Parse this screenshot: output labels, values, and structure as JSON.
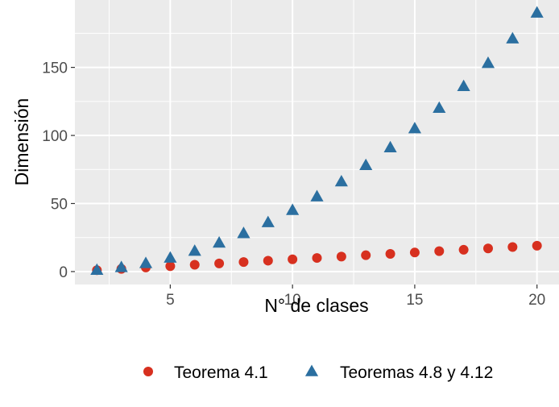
{
  "chart_data": {
    "type": "scatter",
    "xlabel": "N° de clases",
    "ylabel": "Dimensión",
    "xlim": [
      1.1,
      20.9
    ],
    "ylim": [
      -9.5,
      199.5
    ],
    "xticks": [
      5,
      10,
      15,
      20
    ],
    "yticks": [
      0,
      50,
      100,
      150
    ],
    "grid": true,
    "legend_position": "bottom",
    "background": "#ebebeb",
    "series": [
      {
        "name": "Teorema 4.1",
        "marker": "circle",
        "color": "#d7301f",
        "x": [
          2,
          3,
          4,
          5,
          6,
          7,
          8,
          9,
          10,
          11,
          12,
          13,
          14,
          15,
          16,
          17,
          18,
          19,
          20
        ],
        "y": [
          1,
          2,
          3,
          4,
          5,
          6,
          7,
          8,
          9,
          10,
          11,
          12,
          13,
          14,
          15,
          16,
          17,
          18,
          19
        ]
      },
      {
        "name": "Teoremas 4.8 y 4.12",
        "marker": "triangle",
        "color": "#2b6fa0",
        "x": [
          2,
          3,
          4,
          5,
          6,
          7,
          8,
          9,
          10,
          11,
          12,
          13,
          14,
          15,
          16,
          17,
          18,
          19,
          20
        ],
        "y": [
          1,
          3,
          6,
          10,
          15,
          21,
          28,
          36,
          45,
          55,
          66,
          78,
          91,
          105,
          120,
          136,
          153,
          171,
          190
        ]
      }
    ]
  }
}
